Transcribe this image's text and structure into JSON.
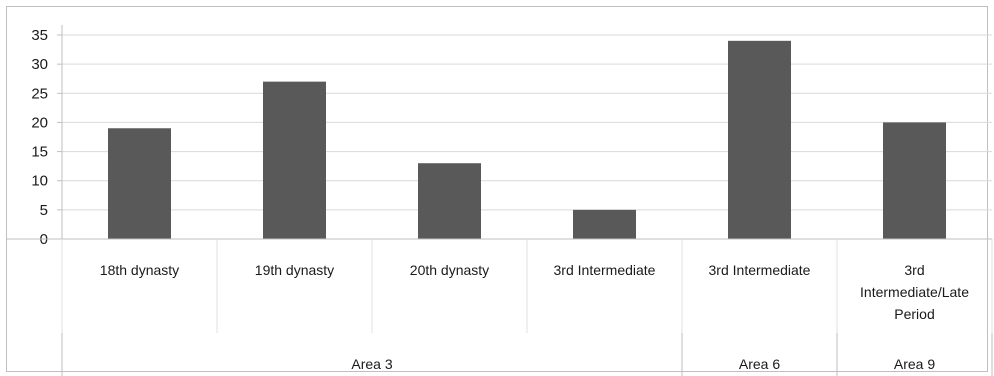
{
  "chart_data": {
    "type": "bar",
    "categories": [
      "18th dynasty",
      "19th dynasty",
      "20th dynasty",
      "3rd Intermediate",
      "3rd Intermediate",
      "3rd Intermediate/Late Period"
    ],
    "category_lines": [
      [
        "18th dynasty"
      ],
      [
        "19th dynasty"
      ],
      [
        "20th dynasty"
      ],
      [
        "3rd Intermediate"
      ],
      [
        "3rd Intermediate"
      ],
      [
        "3rd",
        "Intermediate/Late",
        "Period"
      ]
    ],
    "values": [
      19,
      27,
      13,
      5,
      34,
      20
    ],
    "groups": [
      {
        "label": "Area 3",
        "span": 4
      },
      {
        "label": "Area 6",
        "span": 1
      },
      {
        "label": "Area 9",
        "span": 1
      }
    ],
    "ylim": [
      0,
      35
    ],
    "yticks": [
      "0",
      "5",
      "10",
      "15",
      "20",
      "25",
      "30",
      "35"
    ],
    "grid": true,
    "legend": "none",
    "bar_color": "#595959",
    "grid_color": "#d9d9d9",
    "axis_color": "#bfbfbf"
  }
}
